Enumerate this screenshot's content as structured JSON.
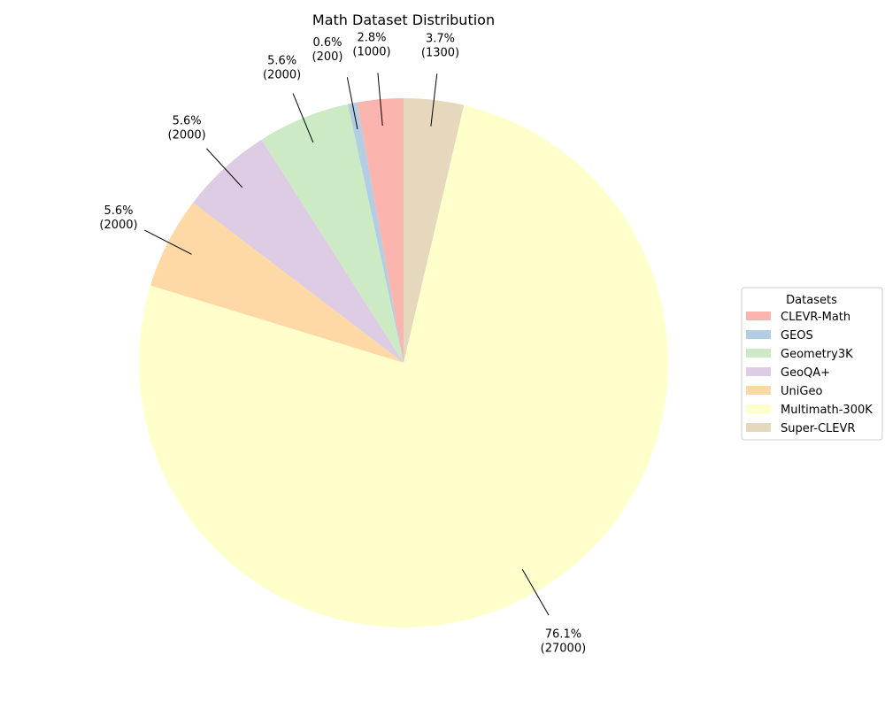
{
  "chart_data": {
    "type": "pie",
    "title": "Math Dataset Distribution",
    "legend": {
      "title": "Datasets",
      "placement": "center-right"
    },
    "slices": [
      {
        "name": "CLEVR-Math",
        "value": 1000,
        "percent_label": "2.8%",
        "value_label": "(1000)",
        "color": "#fbb4ae"
      },
      {
        "name": "GEOS",
        "value": 200,
        "percent_label": "0.6%",
        "value_label": "(200)",
        "color": "#b3cde3"
      },
      {
        "name": "Geometry3K",
        "value": 2000,
        "percent_label": "5.6%",
        "value_label": "(2000)",
        "color": "#ccebc5"
      },
      {
        "name": "GeoQA+",
        "value": 2000,
        "percent_label": "5.6%",
        "value_label": "(2000)",
        "color": "#decbe4"
      },
      {
        "name": "UniGeo",
        "value": 2000,
        "percent_label": "5.6%",
        "value_label": "(2000)",
        "color": "#fed9a6"
      },
      {
        "name": "Multimath-300K",
        "value": 27000,
        "percent_label": "76.1%",
        "value_label": "(27000)",
        "color": "#ffffcc"
      },
      {
        "name": "Super-CLEVR",
        "value": 1300,
        "percent_label": "3.7%",
        "value_label": "(1300)",
        "color": "#e5d8bd"
      }
    ]
  }
}
